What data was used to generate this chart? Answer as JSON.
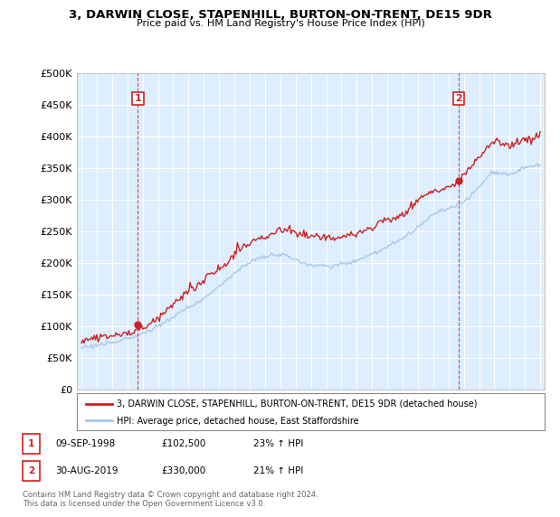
{
  "title": "3, DARWIN CLOSE, STAPENHILL, BURTON-ON-TRENT, DE15 9DR",
  "subtitle": "Price paid vs. HM Land Registry's House Price Index (HPI)",
  "legend_line1": "3, DARWIN CLOSE, STAPENHILL, BURTON-ON-TRENT, DE15 9DR (detached house)",
  "legend_line2": "HPI: Average price, detached house, East Staffordshire",
  "annotation1_label": "1",
  "annotation1_date": "09-SEP-1998",
  "annotation1_price": "£102,500",
  "annotation1_hpi": "23% ↑ HPI",
  "annotation2_label": "2",
  "annotation2_date": "30-AUG-2019",
  "annotation2_price": "£330,000",
  "annotation2_hpi": "21% ↑ HPI",
  "footer": "Contains HM Land Registry data © Crown copyright and database right 2024.\nThis data is licensed under the Open Government Licence v3.0.",
  "sale1_x": 1998.69,
  "sale1_y": 102500,
  "sale2_x": 2019.66,
  "sale2_y": 330000,
  "hpi_color": "#a8c8e8",
  "price_color": "#cc2222",
  "vline_color": "#cc2222",
  "dot_color": "#cc2222",
  "bg_color": "#ddeeff",
  "ylim": [
    0,
    500000
  ],
  "yticks": [
    0,
    50000,
    100000,
    150000,
    200000,
    250000,
    300000,
    350000,
    400000,
    450000,
    500000
  ],
  "xlim_start": 1994.7,
  "xlim_end": 2025.3
}
